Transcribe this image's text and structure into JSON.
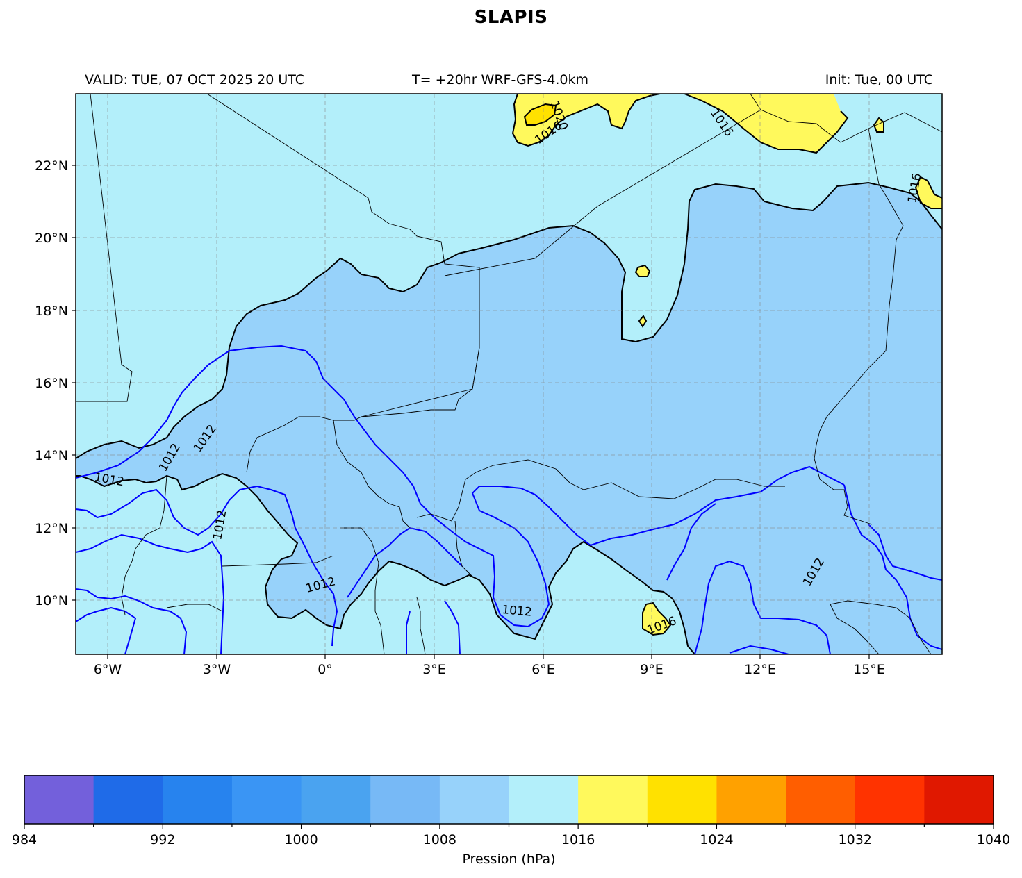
{
  "title": "SLAPIS",
  "header": {
    "valid": "VALID: TUE, 07 OCT 2025 20 UTC",
    "run": "T= +20hr WRF-GFS-4.0km",
    "init": "Init: Tue, 00 UTC"
  },
  "map": {
    "lon_range": [
      -7,
      17
    ],
    "lat_range": [
      8.5,
      24
    ],
    "lon_ticks": [
      {
        "value": -6,
        "label": "6°W"
      },
      {
        "value": -3,
        "label": "3°W"
      },
      {
        "value": 0,
        "label": "0°"
      },
      {
        "value": 3,
        "label": "3°E"
      },
      {
        "value": 6,
        "label": "6°E"
      },
      {
        "value": 9,
        "label": "9°E"
      },
      {
        "value": 12,
        "label": "12°E"
      },
      {
        "value": 15,
        "label": "15°E"
      }
    ],
    "lat_ticks": [
      {
        "value": 22,
        "label": "22°N"
      },
      {
        "value": 20,
        "label": "20°N"
      },
      {
        "value": 18,
        "label": "18°N"
      },
      {
        "value": 16,
        "label": "16°N"
      },
      {
        "value": 14,
        "label": "14°N"
      },
      {
        "value": 12,
        "label": "12°N"
      },
      {
        "value": 10,
        "label": "10°N"
      }
    ],
    "gridlines": true,
    "contour_labels": [
      "1020",
      "1016",
      "1016",
      "1016",
      "1016",
      "1012",
      "1012",
      "1012",
      "1012",
      "1012",
      "1012",
      "1012"
    ],
    "colors": {
      "background_1012_1016": "#b3effa",
      "band_1008_1012": "#97d2fa",
      "band_1016_1020": "#fff95c",
      "band_1020_1024": "#ffe100",
      "isobar_1012": "#0000ff",
      "isobar_other": "#000000",
      "border": "#000000"
    }
  },
  "colorbar": {
    "label": "Pression (hPa)",
    "min": 984,
    "max": 1040,
    "step": 4,
    "tick_labels": [
      "984",
      "992",
      "1000",
      "1008",
      "1016",
      "1024",
      "1032",
      "1040"
    ],
    "colors": [
      "#7360db",
      "#1f6be8",
      "#2783ee",
      "#3a95f4",
      "#4aa3f0",
      "#77b9f6",
      "#97d2fa",
      "#b3effa",
      "#fff95c",
      "#ffe100",
      "#ffa100",
      "#ff5e00",
      "#ff3300",
      "#e01800"
    ]
  }
}
